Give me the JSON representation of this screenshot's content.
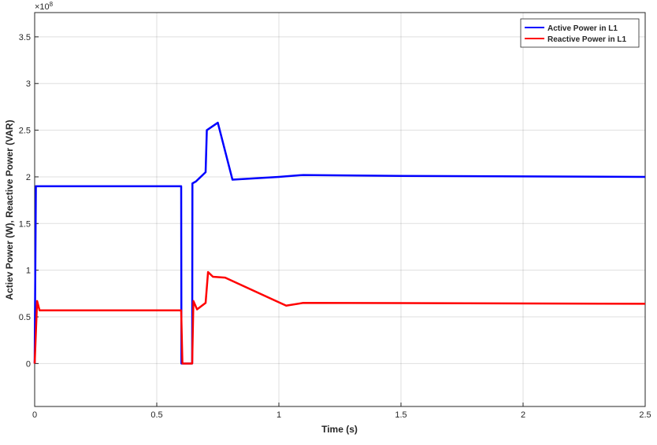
{
  "chart_data": {
    "type": "line",
    "x_label": "Time (s)",
    "y_label": "Actiev Power (W), Reactive Power (VAR)",
    "y_scale_label": "×10",
    "y_scale_exponent": "8",
    "xlim": [
      0,
      2.5
    ],
    "ylim": [
      -0.46,
      3.76
    ],
    "xticks": [
      0,
      0.5,
      1,
      1.5,
      2,
      2.5
    ],
    "yticks": [
      0,
      0.5,
      1,
      1.5,
      2,
      2.5,
      3,
      3.5
    ],
    "grid": true,
    "legend_position": "northeast",
    "series": [
      {
        "name": "Active Power in L1",
        "color": "#0000ff",
        "x": [
          0,
          0.005,
          0.3,
          0.6,
          0.601,
          0.645,
          0.646,
          0.66,
          0.7,
          0.705,
          0.75,
          0.81,
          1.0,
          1.1,
          1.5,
          2.5
        ],
        "values": [
          0,
          1.9,
          1.9,
          1.9,
          0,
          0,
          1.93,
          1.95,
          2.05,
          2.5,
          2.58,
          1.97,
          2.0,
          2.02,
          2.01,
          2.0
        ]
      },
      {
        "name": "Reactive Power in L1",
        "color": "#ff0000",
        "x": [
          0,
          0.01,
          0.02,
          0.3,
          0.6,
          0.605,
          0.645,
          0.65,
          0.665,
          0.69,
          0.7,
          0.71,
          0.73,
          0.78,
          1.03,
          1.1,
          2.5
        ],
        "values": [
          0,
          0.67,
          0.57,
          0.57,
          0.57,
          0,
          0,
          0.67,
          0.58,
          0.63,
          0.65,
          0.98,
          0.93,
          0.92,
          0.62,
          0.65,
          0.64
        ]
      }
    ]
  }
}
